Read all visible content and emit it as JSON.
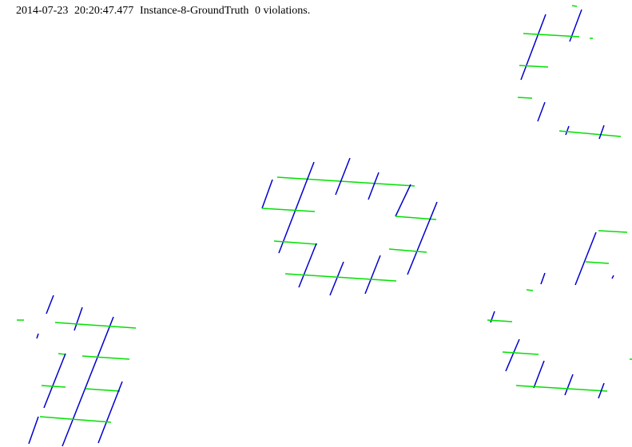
{
  "header": {
    "date": "2014-07-23",
    "time": "20:20:47.477",
    "instance": "Instance-8-GroundTruth",
    "violations": "0 violations."
  },
  "colors": {
    "background": "#ffffff",
    "green_segment": "#00e000",
    "blue_segment": "#0000cc",
    "text": "#000000"
  }
}
